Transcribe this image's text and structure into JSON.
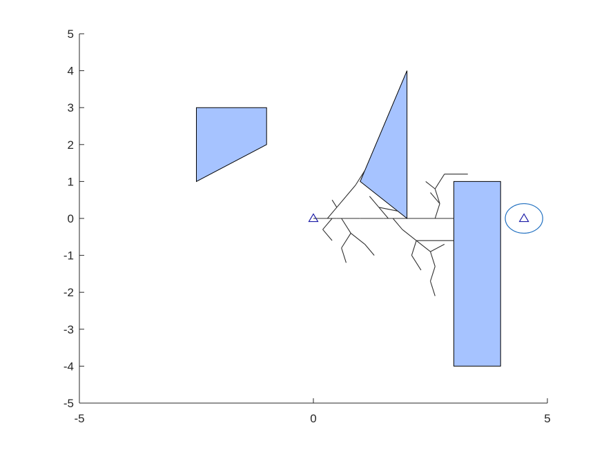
{
  "chart_data": {
    "type": "scatter",
    "title": "",
    "xlabel": "",
    "ylabel": "",
    "xlim": [
      -5,
      5
    ],
    "ylim": [
      -5,
      5
    ],
    "grid": false,
    "x_ticks": [
      -5,
      0,
      5
    ],
    "x_tick_labels": [
      "-5",
      "0",
      "5"
    ],
    "y_ticks": [
      -5,
      -4,
      -3,
      -2,
      -1,
      0,
      1,
      2,
      3,
      4,
      5
    ],
    "y_tick_labels": [
      "-5",
      "-4",
      "-3",
      "-2",
      "-1",
      "0",
      "1",
      "2",
      "3",
      "4",
      "5"
    ],
    "obstacles": [
      {
        "vertices": [
          [
            -2.5,
            1
          ],
          [
            -1,
            2
          ],
          [
            -1,
            3
          ],
          [
            -2.5,
            3
          ]
        ]
      },
      {
        "vertices": [
          [
            1,
            1
          ],
          [
            2,
            4
          ],
          [
            2,
            0
          ]
        ]
      },
      {
        "vertices": [
          [
            3,
            1
          ],
          [
            4,
            1
          ],
          [
            4,
            -4
          ],
          [
            3,
            -4
          ]
        ]
      }
    ],
    "start": {
      "x": 0,
      "y": 0,
      "marker": "triangle"
    },
    "goal": {
      "x": 4.5,
      "y": 0,
      "marker": "triangle",
      "region_radius": 0.4
    },
    "tree_edges": [
      [
        [
          0,
          0
        ],
        [
          0.5,
          0
        ]
      ],
      [
        [
          0.5,
          0
        ],
        [
          1,
          0
        ]
      ],
      [
        [
          1,
          0
        ],
        [
          1.5,
          0
        ]
      ],
      [
        [
          1.5,
          0
        ],
        [
          2,
          0
        ]
      ],
      [
        [
          2,
          0
        ],
        [
          2.5,
          0
        ]
      ],
      [
        [
          2.5,
          0
        ],
        [
          3,
          0
        ]
      ],
      [
        [
          0.3,
          0
        ],
        [
          0.5,
          0.3
        ]
      ],
      [
        [
          0.5,
          0.3
        ],
        [
          0.7,
          0.6
        ]
      ],
      [
        [
          0.7,
          0.6
        ],
        [
          0.9,
          0.9
        ]
      ],
      [
        [
          0.9,
          0.9
        ],
        [
          1.1,
          1.3
        ]
      ],
      [
        [
          0.5,
          0.3
        ],
        [
          0.4,
          0.5
        ]
      ],
      [
        [
          0.6,
          0
        ],
        [
          0.8,
          -0.4
        ]
      ],
      [
        [
          0.8,
          -0.4
        ],
        [
          1.1,
          -0.7
        ]
      ],
      [
        [
          1.1,
          -0.7
        ],
        [
          1.3,
          -1
        ]
      ],
      [
        [
          0.4,
          0
        ],
        [
          0.2,
          -0.3
        ]
      ],
      [
        [
          0.2,
          -0.3
        ],
        [
          0.4,
          -0.6
        ]
      ],
      [
        [
          0.8,
          -0.4
        ],
        [
          0.6,
          -0.8
        ]
      ],
      [
        [
          0.6,
          -0.8
        ],
        [
          0.7,
          -1.2
        ]
      ],
      [
        [
          1.6,
          0
        ],
        [
          1.4,
          0.3
        ]
      ],
      [
        [
          1.4,
          0.3
        ],
        [
          1.2,
          0.6
        ]
      ],
      [
        [
          1.4,
          0.3
        ],
        [
          1.8,
          0.2
        ]
      ],
      [
        [
          1.7,
          0
        ],
        [
          1.9,
          -0.3
        ]
      ],
      [
        [
          1.9,
          -0.3
        ],
        [
          2.2,
          -0.6
        ]
      ],
      [
        [
          2.2,
          -0.6
        ],
        [
          2.5,
          -0.9
        ]
      ],
      [
        [
          2.5,
          -0.9
        ],
        [
          2.6,
          -1.3
        ]
      ],
      [
        [
          2.6,
          -1.3
        ],
        [
          2.5,
          -1.7
        ]
      ],
      [
        [
          2.5,
          -1.7
        ],
        [
          2.6,
          -2.1
        ]
      ],
      [
        [
          2.2,
          -0.6
        ],
        [
          2.1,
          -1
        ]
      ],
      [
        [
          2.1,
          -1
        ],
        [
          2.3,
          -1.4
        ]
      ],
      [
        [
          2.5,
          -0.9
        ],
        [
          2.8,
          -0.7
        ]
      ],
      [
        [
          2.2,
          -0.6
        ],
        [
          3,
          -0.6
        ]
      ],
      [
        [
          2.6,
          0
        ],
        [
          2.7,
          0.4
        ]
      ],
      [
        [
          2.7,
          0.4
        ],
        [
          2.6,
          0.8
        ]
      ],
      [
        [
          2.6,
          0.8
        ],
        [
          2.8,
          1.2
        ]
      ],
      [
        [
          2.8,
          1.2
        ],
        [
          3.3,
          1.2
        ]
      ],
      [
        [
          2.7,
          0.4
        ],
        [
          2.5,
          0.7
        ]
      ],
      [
        [
          2.6,
          0.8
        ],
        [
          2.4,
          1
        ]
      ]
    ]
  }
}
